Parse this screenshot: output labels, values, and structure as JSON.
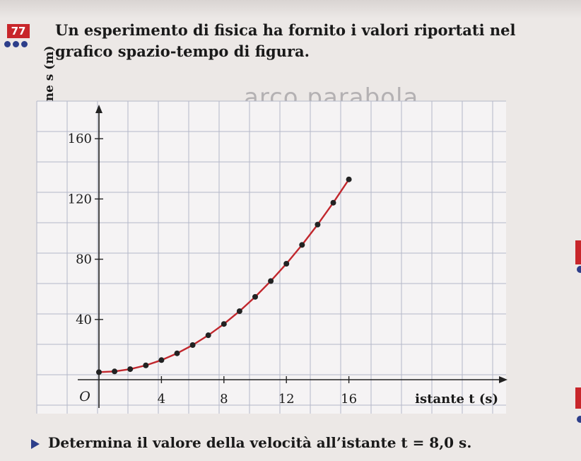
{
  "header": {
    "problem_number": "77",
    "line1": "Un esperimento di fisica ha fornito i valori riportati nel",
    "line2": "grafico spazio-tempo di figura."
  },
  "handwritten_note": "arco parabola",
  "question": "Determina il valore della velocità all’istante t = 8,0 s.",
  "chart_data": {
    "type": "line",
    "xlabel": "istante t (s)",
    "ylabel": "posizione s (m)",
    "origin_label": "O",
    "x_ticks": [
      4,
      8,
      12,
      16
    ],
    "y_ticks": [
      40,
      80,
      120,
      160
    ],
    "xlim": [
      0,
      26
    ],
    "ylim": [
      0,
      170
    ],
    "grid": true,
    "series": [
      {
        "color": "#c1272d",
        "x": [
          0,
          1,
          2,
          3,
          4,
          5,
          6,
          7,
          8,
          9,
          10,
          11,
          12,
          13,
          14,
          15,
          16
        ],
        "y": [
          5,
          5.5,
          7,
          9.5,
          13,
          17.5,
          23,
          29.5,
          37,
          45.5,
          55,
          65.5,
          77,
          89.5,
          103,
          117.5,
          133
        ]
      }
    ]
  },
  "colors": {
    "curve": "#c1272d",
    "points": "#222222",
    "grid": "#b3b7c8",
    "accent_red": "#c8262b",
    "accent_blue": "#2d3e8a"
  }
}
